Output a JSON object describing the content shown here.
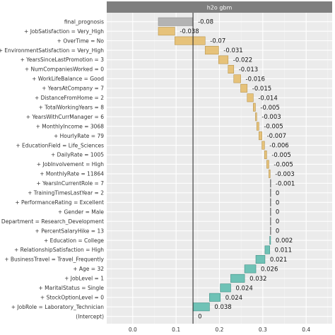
{
  "chart_data": {
    "type": "bar",
    "subtype": "waterfall-breakdown",
    "panel_title": "h2o gbm",
    "xlim": [
      -0.06,
      0.46
    ],
    "x_ticks": [
      0.0,
      0.1,
      0.2,
      0.3,
      0.4
    ],
    "x_tick_labels": [
      "0.0",
      "0.1",
      "0.2",
      "0.3",
      "0.4"
    ],
    "reference_line": 0.139,
    "grid": true,
    "legend": "none",
    "colors": {
      "prediction": "#b3b3b3",
      "positive": "#e6c27a",
      "negative": "#6fc2b6",
      "panel_background": "#ebebeb",
      "strip_background": "#7f7f7f"
    },
    "rows": [
      {
        "label": "final_prognosis",
        "start": 0.059,
        "end": 0.139,
        "contribution_label": "-0.08",
        "kind": "prediction"
      },
      {
        "label": "+ JobSatisfaction = Very_High",
        "start": 0.059,
        "end": 0.097,
        "contribution_label": "-0.038",
        "kind": "positive"
      },
      {
        "label": "+ OverTime = No",
        "start": 0.097,
        "end": 0.167,
        "contribution_label": "-0.07",
        "kind": "positive"
      },
      {
        "label": "+ EnvironmentSatisfaction = Very_High",
        "start": 0.167,
        "end": 0.198,
        "contribution_label": "-0.031",
        "kind": "positive"
      },
      {
        "label": "+ YearsSinceLastPromotion = 3",
        "start": 0.198,
        "end": 0.22,
        "contribution_label": "-0.022",
        "kind": "positive"
      },
      {
        "label": "+ NumCompaniesWorked = 0",
        "start": 0.22,
        "end": 0.233,
        "contribution_label": "-0.013",
        "kind": "positive"
      },
      {
        "label": "+ WorkLifeBalance = Good",
        "start": 0.233,
        "end": 0.249,
        "contribution_label": "-0.016",
        "kind": "positive"
      },
      {
        "label": "+ YearsAtCompany = 7",
        "start": 0.249,
        "end": 0.264,
        "contribution_label": "-0.015",
        "kind": "positive"
      },
      {
        "label": "+ DistanceFromHome = 2",
        "start": 0.264,
        "end": 0.278,
        "contribution_label": "-0.014",
        "kind": "positive"
      },
      {
        "label": "+ TotalWorkingYears = 8",
        "start": 0.278,
        "end": 0.283,
        "contribution_label": "-0.005",
        "kind": "positive"
      },
      {
        "label": "+ YearsWithCurrManager = 6",
        "start": 0.283,
        "end": 0.286,
        "contribution_label": "-0.003",
        "kind": "positive"
      },
      {
        "label": "+ MonthlyIncome = 3068",
        "start": 0.286,
        "end": 0.291,
        "contribution_label": "-0.005",
        "kind": "positive"
      },
      {
        "label": "+ HourlyRate = 79",
        "start": 0.291,
        "end": 0.298,
        "contribution_label": "-0.007",
        "kind": "positive"
      },
      {
        "label": "+ EducationField = Life_Sciences",
        "start": 0.298,
        "end": 0.304,
        "contribution_label": "-0.006",
        "kind": "positive"
      },
      {
        "label": "+ DailyRate = 1005",
        "start": 0.304,
        "end": 0.309,
        "contribution_label": "-0.005",
        "kind": "positive"
      },
      {
        "label": "+ JobInvolvement = High",
        "start": 0.309,
        "end": 0.314,
        "contribution_label": "-0.005",
        "kind": "positive"
      },
      {
        "label": "+ MonthlyRate = 11864",
        "start": 0.314,
        "end": 0.317,
        "contribution_label": "-0.003",
        "kind": "positive"
      },
      {
        "label": "+ YearsInCurrentRole = 7",
        "start": 0.317,
        "end": 0.318,
        "contribution_label": "-0.001",
        "kind": "positive"
      },
      {
        "label": "+ TrainingTimesLastYear = 2",
        "start": 0.318,
        "end": 0.318,
        "contribution_label": "0",
        "kind": "zero"
      },
      {
        "label": "+ PerformanceRating = Excellent",
        "start": 0.318,
        "end": 0.318,
        "contribution_label": "0",
        "kind": "zero"
      },
      {
        "label": "+ Gender = Male",
        "start": 0.318,
        "end": 0.318,
        "contribution_label": "0",
        "kind": "zero"
      },
      {
        "label": "+ Department = Research_Development",
        "start": 0.318,
        "end": 0.318,
        "contribution_label": "0",
        "kind": "zero"
      },
      {
        "label": "+ PercentSalaryHike = 13",
        "start": 0.318,
        "end": 0.318,
        "contribution_label": "0",
        "kind": "zero"
      },
      {
        "label": "+ Education = College",
        "start": 0.316,
        "end": 0.318,
        "contribution_label": "0.002",
        "kind": "negative"
      },
      {
        "label": "+ RelationshipSatisfaction = High",
        "start": 0.305,
        "end": 0.316,
        "contribution_label": "0.011",
        "kind": "negative"
      },
      {
        "label": "+ BusinessTravel = Travel_Frequently",
        "start": 0.284,
        "end": 0.305,
        "contribution_label": "0.021",
        "kind": "negative"
      },
      {
        "label": "+ Age = 32",
        "start": 0.258,
        "end": 0.284,
        "contribution_label": "0.026",
        "kind": "negative"
      },
      {
        "label": "+ JobLevel = 1",
        "start": 0.226,
        "end": 0.258,
        "contribution_label": "0.032",
        "kind": "negative"
      },
      {
        "label": "+ MaritalStatus = Single",
        "start": 0.202,
        "end": 0.226,
        "contribution_label": "0.024",
        "kind": "negative"
      },
      {
        "label": "+ StockOptionLevel = 0",
        "start": 0.177,
        "end": 0.202,
        "contribution_label": "0.024",
        "kind": "negative"
      },
      {
        "label": "+ JobRole = Laboratory_Technician",
        "start": 0.139,
        "end": 0.177,
        "contribution_label": "0.038",
        "kind": "negative"
      },
      {
        "label": "(Intercept)",
        "start": 0.139,
        "end": 0.139,
        "contribution_label": "0",
        "kind": "intercept"
      }
    ]
  }
}
